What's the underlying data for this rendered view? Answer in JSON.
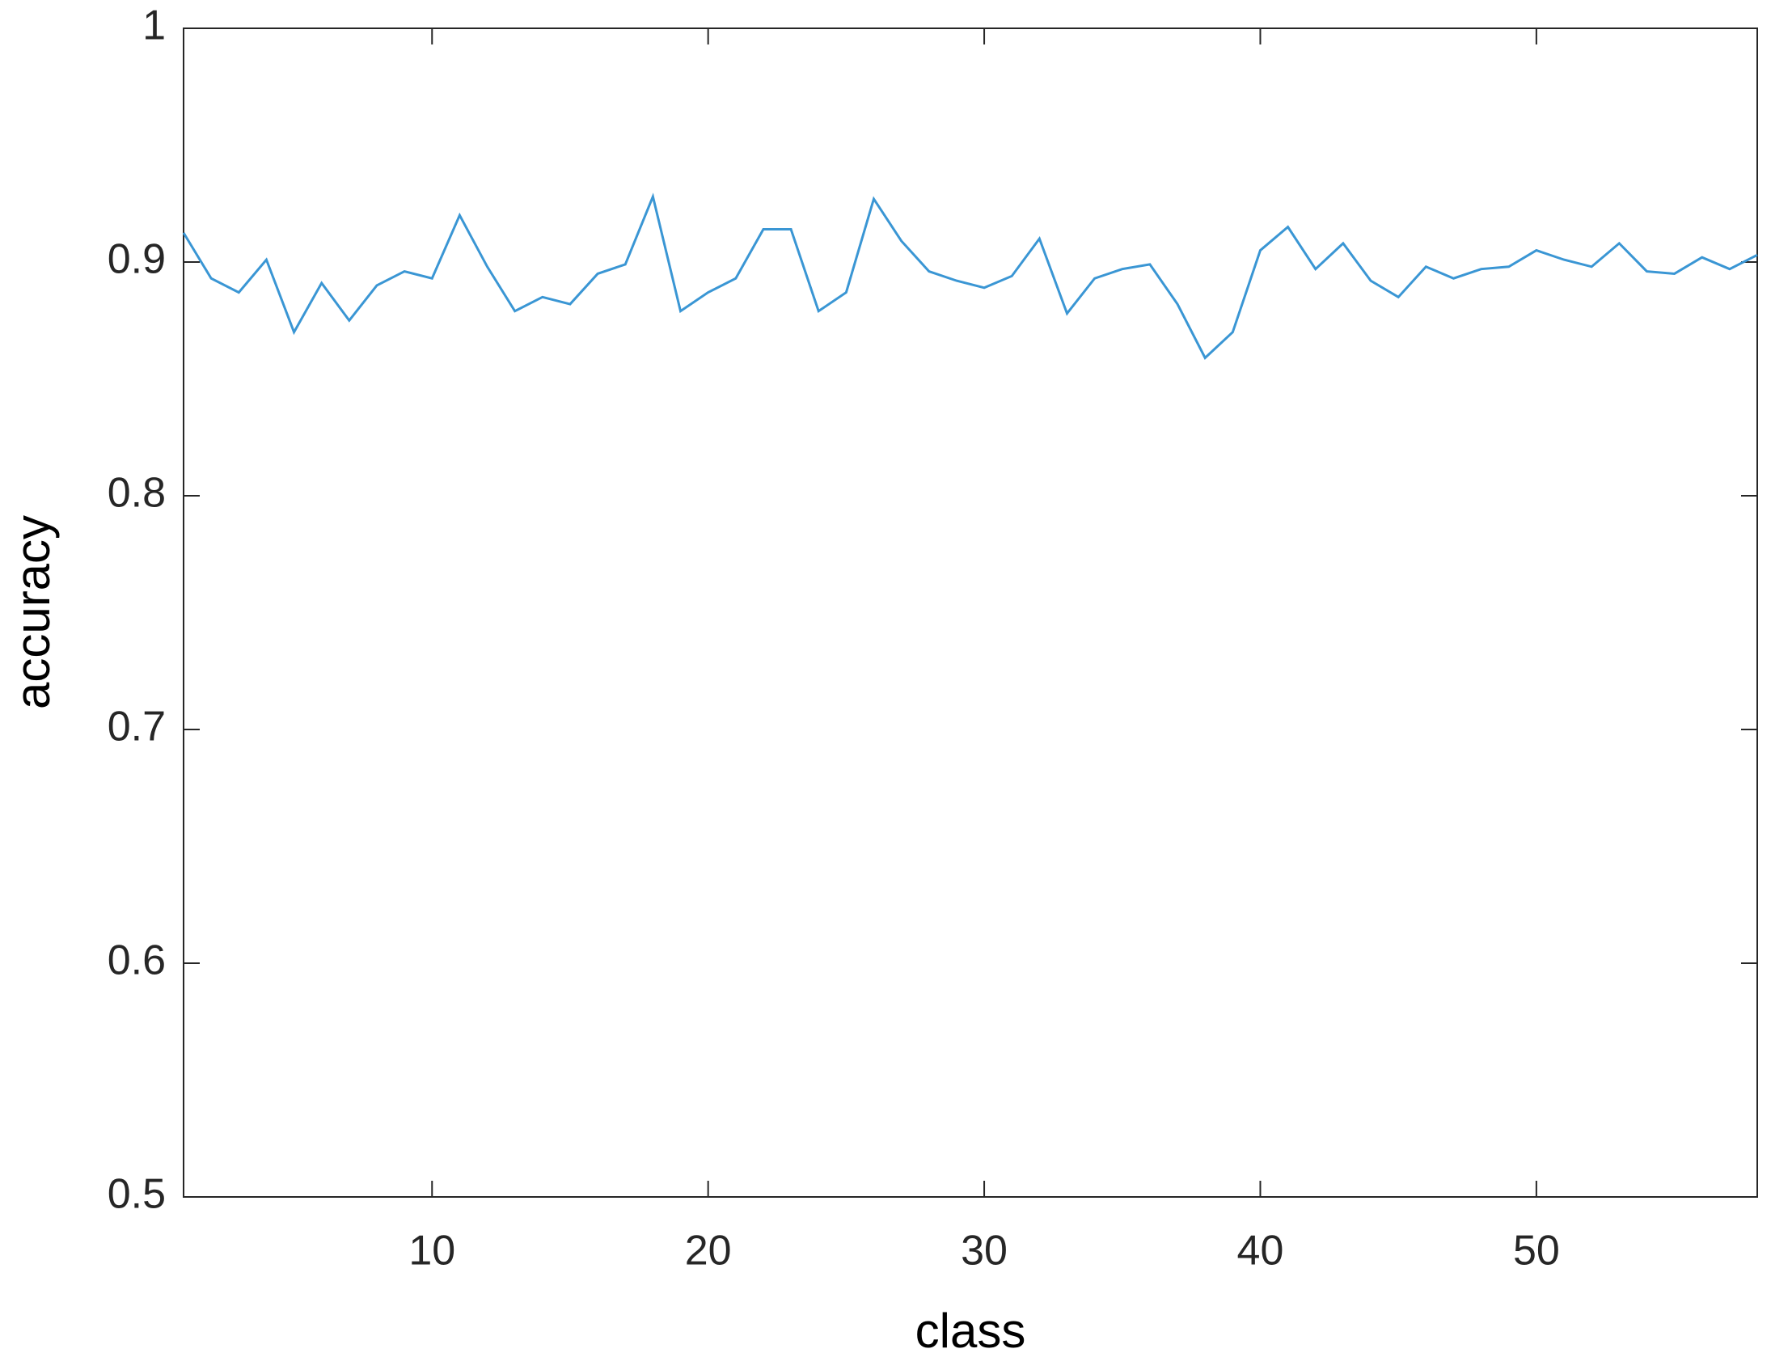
{
  "chart_data": {
    "type": "line",
    "xlabel": "class",
    "ylabel": "accuracy",
    "x": [
      1,
      2,
      3,
      4,
      5,
      6,
      7,
      8,
      9,
      10,
      11,
      12,
      13,
      14,
      15,
      16,
      17,
      18,
      19,
      20,
      21,
      22,
      23,
      24,
      25,
      26,
      27,
      28,
      29,
      30,
      31,
      32,
      33,
      34,
      35,
      36,
      37,
      38,
      39,
      40,
      41,
      42,
      43,
      44,
      45,
      46,
      47,
      48,
      49,
      50,
      51,
      52,
      53,
      54,
      55,
      56,
      57,
      58
    ],
    "series": [
      {
        "color": "#3a96d4",
        "values": [
          0.9125,
          0.893,
          0.887,
          0.901,
          0.87,
          0.891,
          0.875,
          0.89,
          0.896,
          0.893,
          0.92,
          0.898,
          0.879,
          0.885,
          0.882,
          0.895,
          0.899,
          0.928,
          0.879,
          0.887,
          0.893,
          0.914,
          0.914,
          0.879,
          0.887,
          0.927,
          0.909,
          0.896,
          0.892,
          0.889,
          0.894,
          0.91,
          0.878,
          0.893,
          0.897,
          0.899,
          0.882,
          0.859,
          0.87,
          0.905,
          0.915,
          0.897,
          0.908,
          0.892,
          0.885,
          0.898,
          0.893,
          0.897,
          0.898,
          0.905,
          0.901,
          0.898,
          0.908,
          0.896,
          0.895,
          0.902,
          0.897,
          0.903
        ]
      }
    ],
    "xlim": [
      1,
      58
    ],
    "ylim": [
      0.5,
      1
    ],
    "xticks": [
      10,
      20,
      30,
      40,
      50
    ],
    "yticks": [
      0.5,
      0.6,
      0.7,
      0.8,
      0.9,
      1
    ],
    "grid": false
  }
}
